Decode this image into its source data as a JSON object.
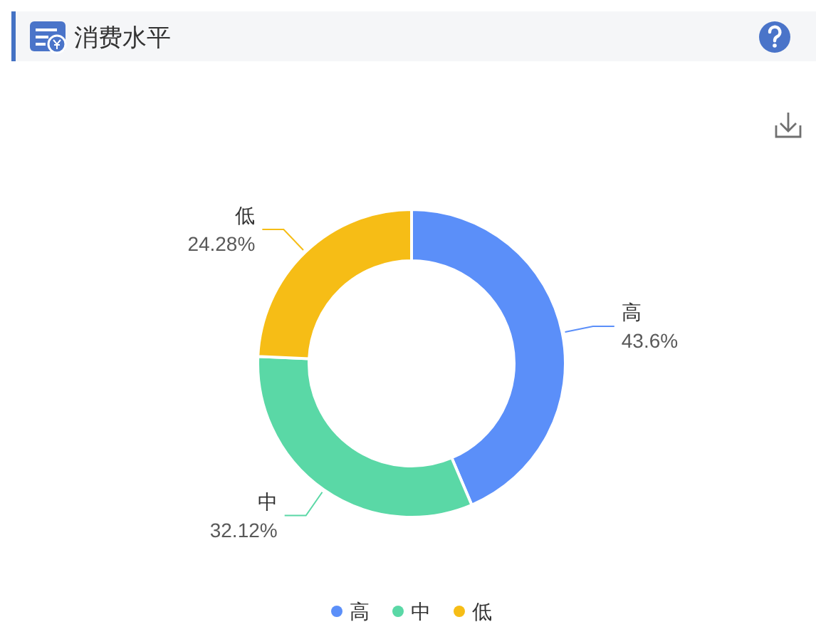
{
  "chart_data": {
    "type": "donut",
    "title": "消费水平",
    "categories": [
      "高",
      "中",
      "低"
    ],
    "values": [
      43.6,
      32.12,
      24.28
    ],
    "colors": [
      "#5b8ff9",
      "#5ad8a6",
      "#f6bd16"
    ],
    "value_labels": [
      "43.6%",
      "32.12%",
      "24.28%"
    ],
    "legend": "bottom"
  }
}
